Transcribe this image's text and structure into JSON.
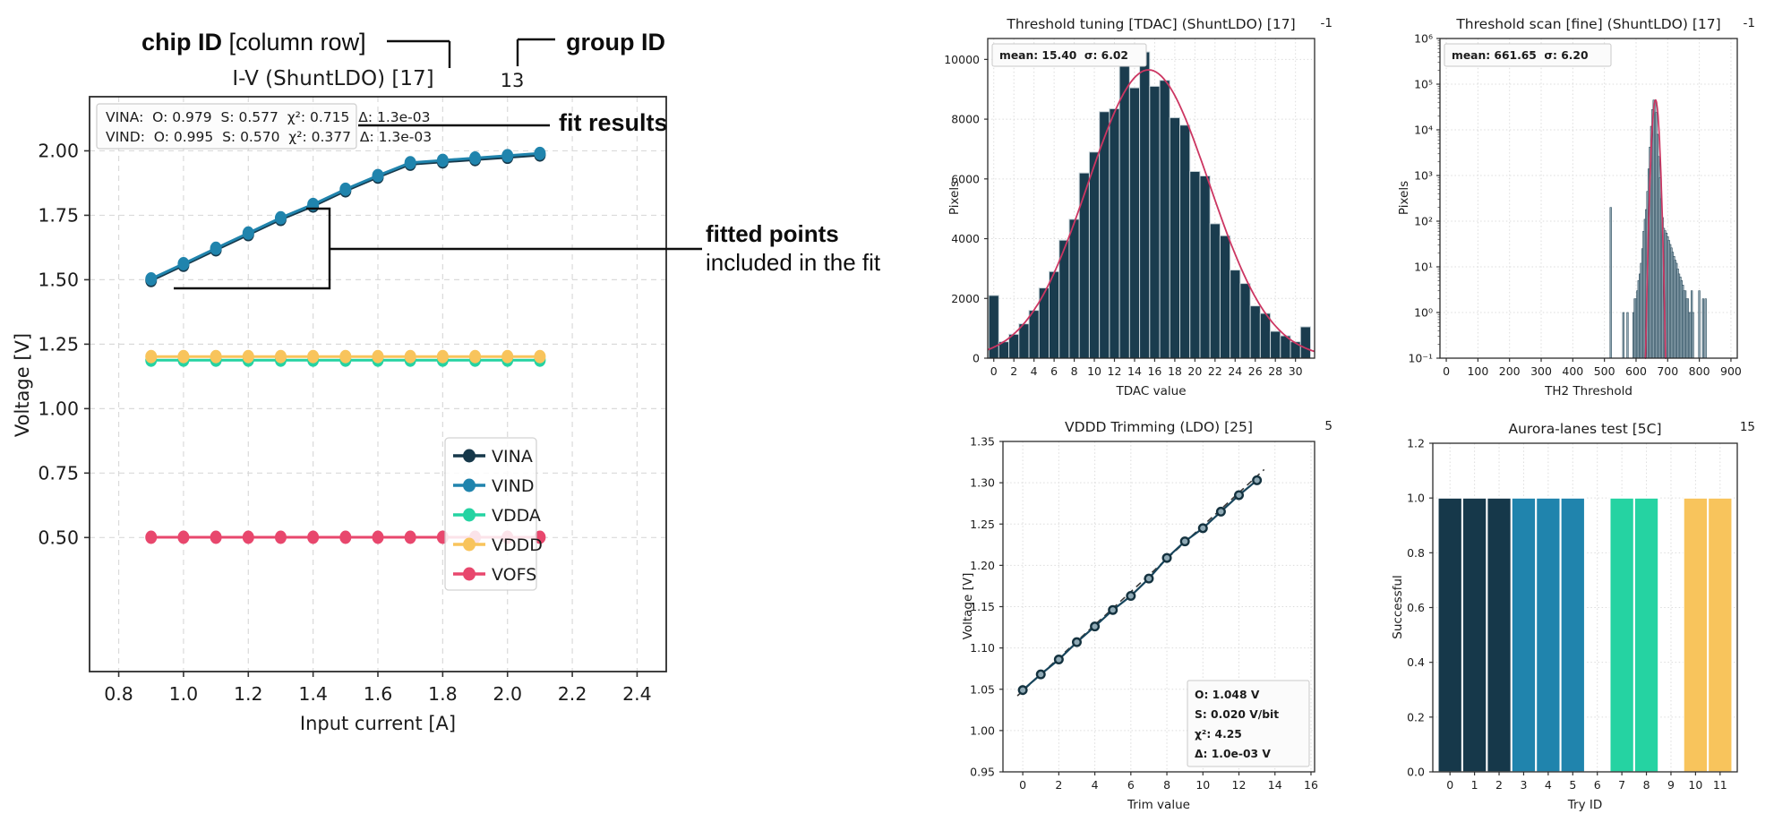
{
  "annotations": {
    "chip_id_bold": "chip ID",
    "chip_id_rest": " [column row]",
    "group_id_label": "group ID",
    "fit_results_label": "fit results",
    "fitted_points_bold": "fitted points",
    "fitted_points_rest": "included in the fit"
  },
  "chart_data": [
    {
      "id": "iv",
      "type": "line",
      "title": "I-V (ShuntLDO) [17]",
      "group_id": "13",
      "xlabel": "Input current [A]",
      "ylabel": "Voltage [V]",
      "xlim": [
        0.71,
        2.49
      ],
      "ylim": [
        -0.02,
        2.21
      ],
      "xticks": [
        0.8,
        1.0,
        1.2,
        1.4,
        1.6,
        1.8,
        2.0,
        2.2,
        2.4
      ],
      "yticks": [
        0.5,
        0.75,
        1.0,
        1.25,
        1.5,
        1.75,
        2.0
      ],
      "x": [
        0.9,
        1.0,
        1.1,
        1.2,
        1.3,
        1.4,
        1.5,
        1.6,
        1.7,
        1.8,
        1.9,
        2.0,
        2.1
      ],
      "fit_box": [
        "VINA:  O: 0.979  S: 0.577  χ²: 0.715  Δ: 1.3e-03",
        "VIND:  O: 0.995  S: 0.570  χ²: 0.377  Δ: 1.3e-03"
      ],
      "legend_position": "lower right",
      "series": [
        {
          "name": "VINA",
          "color": "#16384a",
          "values": [
            1.497,
            1.556,
            1.616,
            1.675,
            1.734,
            1.786,
            1.845,
            1.898,
            1.948,
            1.957,
            1.966,
            1.975,
            1.984
          ]
        },
        {
          "name": "VIND",
          "color": "#2084ad",
          "values": [
            1.503,
            1.562,
            1.622,
            1.681,
            1.74,
            1.792,
            1.851,
            1.904,
            1.954,
            1.963,
            1.972,
            1.981,
            1.99
          ]
        },
        {
          "name": "VDDA",
          "color": "#25d3a2",
          "values": [
            1.188,
            1.188,
            1.188,
            1.188,
            1.188,
            1.188,
            1.188,
            1.188,
            1.188,
            1.188,
            1.188,
            1.188,
            1.188
          ]
        },
        {
          "name": "VDDD",
          "color": "#f8c45c",
          "values": [
            1.202,
            1.202,
            1.202,
            1.202,
            1.202,
            1.202,
            1.202,
            1.202,
            1.202,
            1.202,
            1.202,
            1.202,
            1.202
          ]
        },
        {
          "name": "VOFS",
          "color": "#e8476d",
          "values": [
            0.501,
            0.501,
            0.501,
            0.501,
            0.501,
            0.501,
            0.501,
            0.501,
            0.501,
            0.501,
            0.501,
            0.501,
            0.501
          ]
        }
      ]
    },
    {
      "id": "tdac",
      "type": "bar",
      "title": "Threshold tuning [TDAC] (ShuntLDO) [17]",
      "group_id": "-1",
      "stats": "mean: 15.40  σ: 6.02",
      "xlabel": "TDAC value",
      "ylabel": "Pixels",
      "ylim": [
        0,
        10700
      ],
      "xticks": [
        0,
        2,
        4,
        6,
        8,
        10,
        12,
        14,
        16,
        18,
        20,
        22,
        24,
        26,
        28,
        30
      ],
      "yticks": [
        0,
        2000,
        4000,
        6000,
        8000,
        10000
      ],
      "bar_color": "#1a3c4e",
      "bar_edge_color": "#c9d4d9",
      "fit_color": "#cc3662",
      "fit": {
        "mean": 15.4,
        "sigma": 6.02,
        "amplitude": 9650
      },
      "values": [
        2100,
        550,
        800,
        1150,
        1600,
        2350,
        2900,
        3950,
        4650,
        6200,
        6900,
        8250,
        8350,
        9900,
        9050,
        10250,
        9100,
        9300,
        8050,
        7800,
        6250,
        6100,
        4500,
        4100,
        2950,
        2500,
        1750,
        1500,
        900,
        750,
        550,
        1050
      ]
    },
    {
      "id": "scan",
      "type": "bar",
      "title": "Threshold scan [fine] (ShuntLDO) [17]",
      "group_id": "-1",
      "stats": "mean: 661.65  σ: 6.20",
      "xlabel": "TH2 Threshold",
      "ylabel": "Pixels",
      "yscale": "log",
      "xlim": [
        -20,
        920
      ],
      "xticks": [
        0,
        100,
        200,
        300,
        400,
        500,
        600,
        700,
        800,
        900
      ],
      "ytick_decades": [
        -1,
        0,
        1,
        2,
        3,
        4,
        5,
        6
      ],
      "ytick_labels": [
        "10⁻¹",
        "10⁰",
        "10¹",
        "10²",
        "10³",
        "10⁴",
        "10⁵",
        "10⁶"
      ],
      "bar_color": "#92a8b3",
      "bar_edge_color": "#1a3c4e",
      "fit_color": "#cc3662",
      "fit": {
        "mean": 661.65,
        "sigma": 6.2,
        "amplitude": 45000
      },
      "bars": [
        [
          520,
          200
        ],
        [
          560,
          1
        ],
        [
          573,
          1
        ],
        [
          592,
          1
        ],
        [
          596,
          2
        ],
        [
          600,
          2
        ],
        [
          604,
          3
        ],
        [
          608,
          5
        ],
        [
          612,
          7
        ],
        [
          616,
          12
        ],
        [
          620,
          25
        ],
        [
          624,
          60
        ],
        [
          628,
          110
        ],
        [
          632,
          180
        ],
        [
          636,
          450
        ],
        [
          640,
          1400
        ],
        [
          644,
          4200
        ],
        [
          648,
          12000
        ],
        [
          652,
          28000
        ],
        [
          656,
          45000
        ],
        [
          660,
          43000
        ],
        [
          664,
          24000
        ],
        [
          668,
          8000
        ],
        [
          672,
          2600
        ],
        [
          676,
          900
        ],
        [
          680,
          310
        ],
        [
          684,
          120
        ],
        [
          688,
          70
        ],
        [
          692,
          62
        ],
        [
          696,
          55
        ],
        [
          700,
          46
        ],
        [
          704,
          38
        ],
        [
          708,
          31
        ],
        [
          712,
          26
        ],
        [
          716,
          21
        ],
        [
          720,
          17
        ],
        [
          724,
          14
        ],
        [
          728,
          12
        ],
        [
          732,
          9
        ],
        [
          736,
          7
        ],
        [
          740,
          6
        ],
        [
          744,
          5
        ],
        [
          748,
          4
        ],
        [
          752,
          3
        ],
        [
          756,
          3
        ],
        [
          760,
          2
        ],
        [
          764,
          2
        ],
        [
          768,
          1
        ],
        [
          772,
          1
        ],
        [
          776,
          3
        ],
        [
          780,
          1
        ],
        [
          800,
          3
        ],
        [
          812,
          2
        ],
        [
          820,
          2
        ]
      ]
    },
    {
      "id": "trim",
      "type": "scatter",
      "title": "VDDD Trimming (LDO) [25]",
      "group_id": "5",
      "xlabel": "Trim value",
      "ylabel": "Voltage [V]",
      "xlim": [
        -1.1,
        16.2
      ],
      "ylim": [
        0.95,
        1.35
      ],
      "xticks": [
        0,
        2,
        4,
        6,
        8,
        10,
        12,
        14,
        16
      ],
      "yticks": [
        0.95,
        1.0,
        1.05,
        1.1,
        1.15,
        1.2,
        1.25,
        1.3,
        1.35
      ],
      "line_color": "#17455c",
      "marker_edge_color": "#14323f",
      "x": [
        0,
        1,
        2,
        3,
        4,
        5,
        6,
        7,
        8,
        9,
        10,
        11,
        12,
        13
      ],
      "y": [
        1.049,
        1.068,
        1.086,
        1.107,
        1.126,
        1.146,
        1.163,
        1.184,
        1.209,
        1.229,
        1.245,
        1.265,
        1.285,
        1.303
      ],
      "fit": {
        "offset": 1.048,
        "slope": 0.02
      },
      "fit_box": [
        "O: 1.048 V",
        "S: 0.020 V/bit",
        "χ²: 4.25",
        "Δ: 1.0e-03 V"
      ]
    },
    {
      "id": "aurora",
      "type": "bar",
      "title": "Aurora-lanes test [5C]",
      "group_id": "15",
      "xlabel": "Try ID",
      "ylabel": "Successful",
      "ylim": [
        0,
        1.2
      ],
      "yticks": [
        0.0,
        0.2,
        0.4,
        0.6,
        0.8,
        1.0,
        1.2
      ],
      "categories": [
        0,
        1,
        2,
        3,
        4,
        5,
        6,
        7,
        8,
        9,
        10,
        11
      ],
      "values": [
        1,
        1,
        1,
        1,
        1,
        1,
        0,
        1,
        1,
        0,
        1,
        1
      ],
      "colors": [
        "#16384a",
        "#16384a",
        "#16384a",
        "#2084ad",
        "#2084ad",
        "#2084ad",
        "",
        "#25d3a2",
        "#25d3a2",
        "",
        "#f8c45c",
        "#f8c45c"
      ]
    }
  ]
}
